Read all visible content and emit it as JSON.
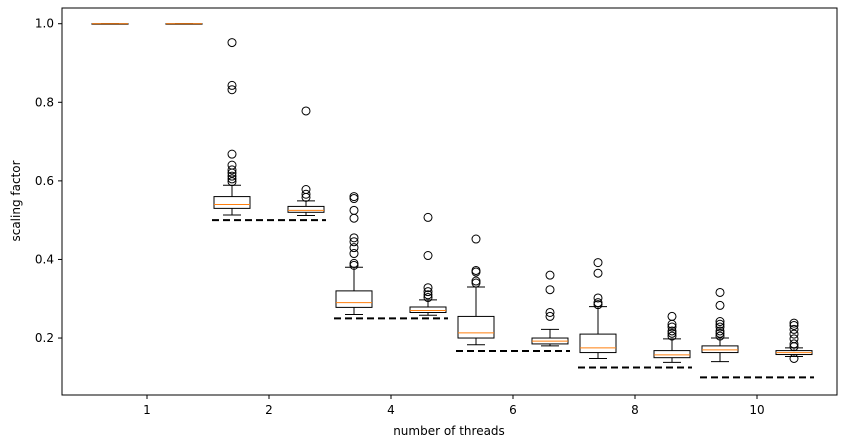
{
  "chart_data": {
    "type": "boxplot",
    "xlabel": "number of threads",
    "ylabel": "scaling factor",
    "ylim": [
      0.055,
      1.04
    ],
    "yticks": [
      0.2,
      0.4,
      0.6,
      0.8,
      1.0
    ],
    "ytick_labels": [
      "0.2",
      "0.4",
      "0.6",
      "0.8",
      "1.0"
    ],
    "categories": [
      "1",
      "2",
      "4",
      "6",
      "8",
      "10"
    ],
    "grid": false,
    "colors": {
      "box": "#000000",
      "median": "#ff7f0e",
      "reference": "#000000"
    },
    "groups": [
      {
        "label": "1",
        "reference": null,
        "boxes": [
          {
            "q1": 1.0,
            "median": 1.0,
            "q3": 1.0,
            "whisker_low": 1.0,
            "whisker_high": 1.0,
            "outliers": []
          },
          {
            "q1": 1.0,
            "median": 1.0,
            "q3": 1.0,
            "whisker_low": 1.0,
            "whisker_high": 1.0,
            "outliers": []
          }
        ]
      },
      {
        "label": "2",
        "reference": 0.5,
        "boxes": [
          {
            "q1": 0.53,
            "median": 0.54,
            "q3": 0.56,
            "whisker_low": 0.513,
            "whisker_high": 0.589,
            "outliers": [
              0.598,
              0.605,
              0.612,
              0.62,
              0.628,
              0.64,
              0.668,
              0.832,
              0.843,
              0.952
            ]
          },
          {
            "q1": 0.52,
            "median": 0.525,
            "q3": 0.535,
            "whisker_low": 0.512,
            "whisker_high": 0.549,
            "outliers": [
              0.558,
              0.566,
              0.578,
              0.778
            ]
          }
        ]
      },
      {
        "label": "4",
        "reference": 0.25,
        "boxes": [
          {
            "q1": 0.278,
            "median": 0.29,
            "q3": 0.32,
            "whisker_low": 0.26,
            "whisker_high": 0.38,
            "outliers": [
              0.385,
              0.39,
              0.415,
              0.43,
              0.445,
              0.455,
              0.505,
              0.525,
              0.555,
              0.56
            ]
          },
          {
            "q1": 0.265,
            "median": 0.27,
            "q3": 0.279,
            "whisker_low": 0.258,
            "whisker_high": 0.297,
            "outliers": [
              0.303,
              0.31,
              0.318,
              0.328,
              0.41,
              0.507
            ]
          }
        ]
      },
      {
        "label": "6",
        "reference": 0.167,
        "boxes": [
          {
            "q1": 0.2,
            "median": 0.213,
            "q3": 0.255,
            "whisker_low": 0.183,
            "whisker_high": 0.33,
            "outliers": [
              0.34,
              0.345,
              0.368,
              0.372,
              0.452
            ]
          },
          {
            "q1": 0.185,
            "median": 0.192,
            "q3": 0.2,
            "whisker_low": 0.18,
            "whisker_high": 0.222,
            "outliers": [
              0.255,
              0.265,
              0.323,
              0.36
            ]
          }
        ]
      },
      {
        "label": "8",
        "reference": 0.125,
        "boxes": [
          {
            "q1": 0.163,
            "median": 0.175,
            "q3": 0.21,
            "whisker_low": 0.148,
            "whisker_high": 0.28,
            "outliers": [
              0.285,
              0.29,
              0.302,
              0.365,
              0.392
            ]
          },
          {
            "q1": 0.15,
            "median": 0.157,
            "q3": 0.168,
            "whisker_low": 0.138,
            "whisker_high": 0.198,
            "outliers": [
              0.205,
              0.212,
              0.218,
              0.228,
              0.235,
              0.255
            ]
          }
        ]
      },
      {
        "label": "10",
        "reference": 0.1,
        "boxes": [
          {
            "q1": 0.163,
            "median": 0.17,
            "q3": 0.18,
            "whisker_low": 0.14,
            "whisker_high": 0.2,
            "outliers": [
              0.205,
              0.212,
              0.218,
              0.228,
              0.235,
              0.242,
              0.283,
              0.316
            ]
          },
          {
            "q1": 0.158,
            "median": 0.163,
            "q3": 0.168,
            "whisker_low": 0.153,
            "whisker_high": 0.175,
            "outliers": [
              0.148,
              0.178,
              0.185,
              0.198,
              0.21,
              0.222,
              0.232,
              0.238
            ]
          }
        ]
      }
    ]
  }
}
